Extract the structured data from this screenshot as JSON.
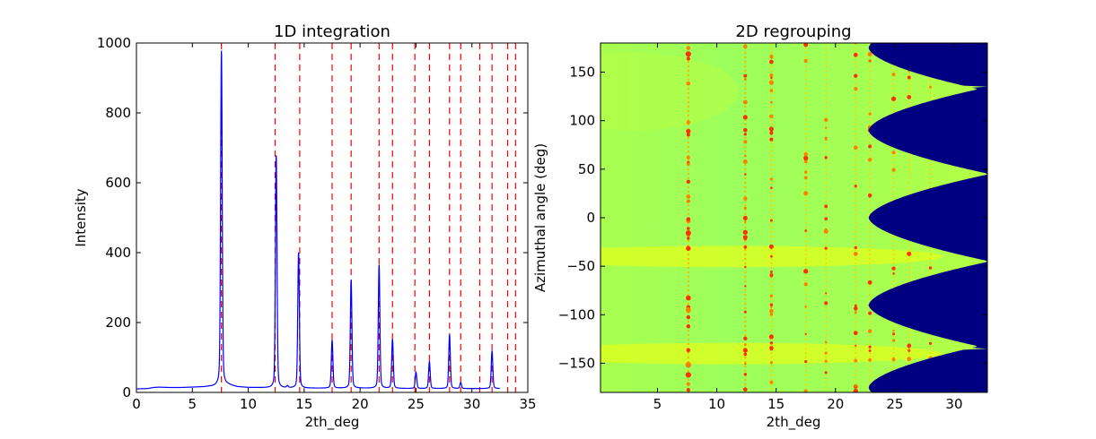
{
  "chart_data": [
    {
      "type": "line",
      "title": "1D integration",
      "xlabel": "2th_deg",
      "ylabel": "Intensity",
      "xlim": [
        0,
        35
      ],
      "ylim": [
        0,
        1000
      ],
      "xticks": [
        0,
        5,
        10,
        15,
        20,
        25,
        30,
        35
      ],
      "yticks": [
        0,
        200,
        400,
        600,
        800,
        1000
      ],
      "grid": false,
      "series": [
        {
          "color": "#0000ff",
          "baseline": [
            [
              0.0,
              10
            ],
            [
              1.0,
              11
            ],
            [
              1.5,
              14
            ],
            [
              2.0,
              15
            ],
            [
              3.0,
              14
            ],
            [
              4.0,
              14
            ],
            [
              5.0,
              15
            ],
            [
              6.0,
              16
            ],
            [
              7.0,
              18
            ],
            [
              7.4,
              22
            ],
            [
              8.2,
              22
            ],
            [
              9.0,
              16
            ],
            [
              10.0,
              14
            ],
            [
              12.0,
              13
            ],
            [
              15.0,
              12
            ],
            [
              20.0,
              12
            ],
            [
              25.0,
              11
            ],
            [
              30.0,
              11
            ],
            [
              32.0,
              11
            ],
            [
              32.5,
              11
            ]
          ],
          "peaks": [
            {
              "x": 7.6,
              "y": 978
            },
            {
              "x": 12.5,
              "y": 678
            },
            {
              "x": 13.5,
              "y": 18
            },
            {
              "x": 14.5,
              "y": 400
            },
            {
              "x": 17.5,
              "y": 150
            },
            {
              "x": 19.2,
              "y": 322
            },
            {
              "x": 21.7,
              "y": 365
            },
            {
              "x": 22.9,
              "y": 152
            },
            {
              "x": 25.0,
              "y": 58
            },
            {
              "x": 26.2,
              "y": 88
            },
            {
              "x": 28.0,
              "y": 165
            },
            {
              "x": 29.0,
              "y": 28
            },
            {
              "x": 31.8,
              "y": 118
            }
          ]
        }
      ],
      "reference_lines": {
        "color": "#ff0000",
        "style": "dashed",
        "x": [
          7.6,
          12.4,
          14.6,
          17.5,
          19.2,
          21.7,
          22.9,
          24.9,
          26.2,
          28.0,
          29.0,
          30.7,
          31.8,
          33.2,
          33.9
        ]
      }
    },
    {
      "type": "heatmap",
      "title": "2D regrouping",
      "xlabel": "2th_deg",
      "ylabel": "Azimuthal angle (deg)",
      "xlim": [
        0.2,
        32.8
      ],
      "ylim": [
        -180,
        180
      ],
      "xticks": [
        5,
        10,
        15,
        20,
        25,
        30
      ],
      "yticks": [
        -150,
        -100,
        -50,
        0,
        50,
        100,
        150
      ],
      "colormap": "jet",
      "colors": {
        "background": "#a6ff52",
        "bright_band": "#e0ff1e",
        "dark_bay": "#000080",
        "spot": "#ff3000"
      },
      "ring_positions": [
        7.6,
        12.4,
        14.6,
        17.5,
        19.2,
        21.7,
        22.9,
        24.9,
        26.2,
        28.0
      ],
      "bright_bands_y": [
        -40,
        -140
      ],
      "bay_apex_y": [
        -175,
        -90,
        0,
        90,
        175
      ],
      "bay_apex_x": 22.8,
      "bay_tip_y": [
        -135,
        -45,
        45,
        135
      ]
    }
  ]
}
